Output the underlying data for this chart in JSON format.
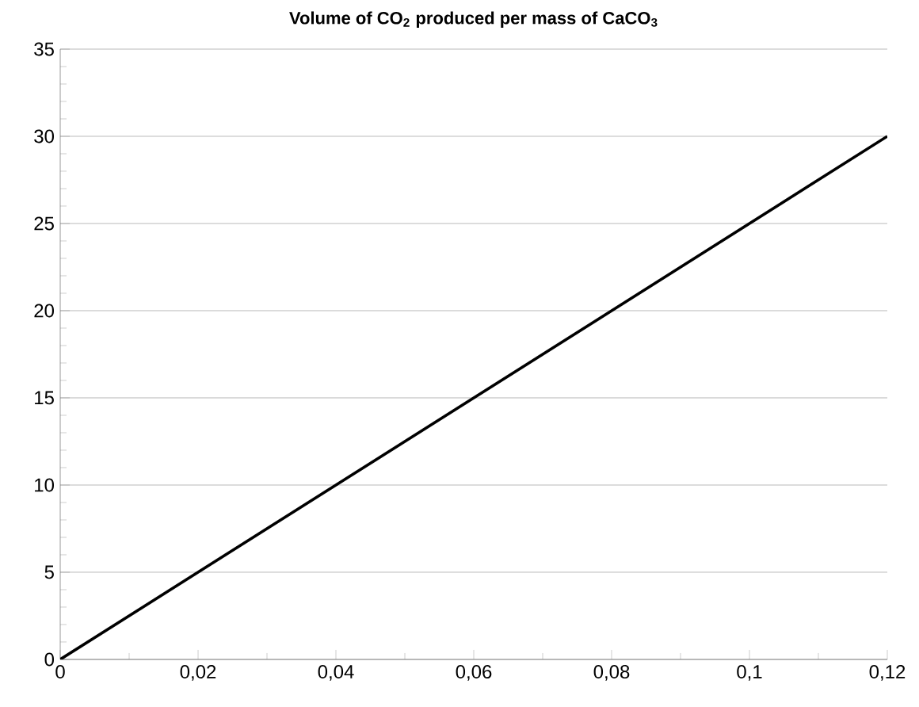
{
  "chart_data": {
    "type": "line",
    "title": "Volume of CO$_{2}$ produced per mass of CaCO$_{3}$",
    "x": [
      0,
      0.12
    ],
    "values": [
      0,
      30
    ],
    "color": "#000000",
    "xlim": [
      0,
      0.12
    ],
    "xticks": [
      0,
      {
        "value": 0.01,
        "label": null
      },
      {
        "value": 0.02,
        "label": "0,02"
      },
      {
        "value": 0.03,
        "label": null
      },
      {
        "value": 0.04,
        "label": "0,04"
      },
      {
        "value": 0.05,
        "label": null
      },
      {
        "value": 0.06,
        "label": "0,06"
      },
      {
        "value": 0.07,
        "label": null
      },
      {
        "value": 0.08,
        "label": "0,08"
      },
      {
        "value": 0.09,
        "label": null
      },
      {
        "value": 0.1,
        "label": "0,1"
      },
      {
        "value": 0.11,
        "label": null
      },
      {
        "value": 0.12,
        "label": "0,12"
      }
    ],
    "ylim": [
      0,
      35
    ],
    "yticks": [
      0,
      {
        "value": 1,
        "label": null
      },
      {
        "value": 2,
        "label": null
      },
      {
        "value": 3,
        "label": null
      },
      {
        "value": 4,
        "label": null
      },
      5,
      {
        "value": 6,
        "label": null
      },
      {
        "value": 7,
        "label": null
      },
      {
        "value": 8,
        "label": null
      },
      {
        "value": 9,
        "label": null
      },
      10,
      {
        "value": 11,
        "label": null
      },
      {
        "value": 12,
        "label": null
      },
      {
        "value": 13,
        "label": null
      },
      {
        "value": 14,
        "label": null
      },
      15,
      {
        "value": 16,
        "label": null
      },
      {
        "value": 17,
        "label": null
      },
      {
        "value": 18,
        "label": null
      },
      {
        "value": 19,
        "label": null
      },
      20,
      {
        "value": 21,
        "label": null
      },
      {
        "value": 22,
        "label": null
      },
      {
        "value": 23,
        "label": null
      },
      {
        "value": 24,
        "label": null
      },
      25,
      {
        "value": 26,
        "label": null
      },
      {
        "value": 27,
        "label": null
      },
      {
        "value": 28,
        "label": null
      },
      {
        "value": 29,
        "label": null
      },
      30,
      {
        "value": 31,
        "label": null
      },
      {
        "value": 32,
        "label": null
      },
      {
        "value": 33,
        "label": null
      },
      {
        "value": 34,
        "label": null
      },
      35
    ],
    "grid": "y",
    "marker": "none",
    "line_style": "solid"
  }
}
